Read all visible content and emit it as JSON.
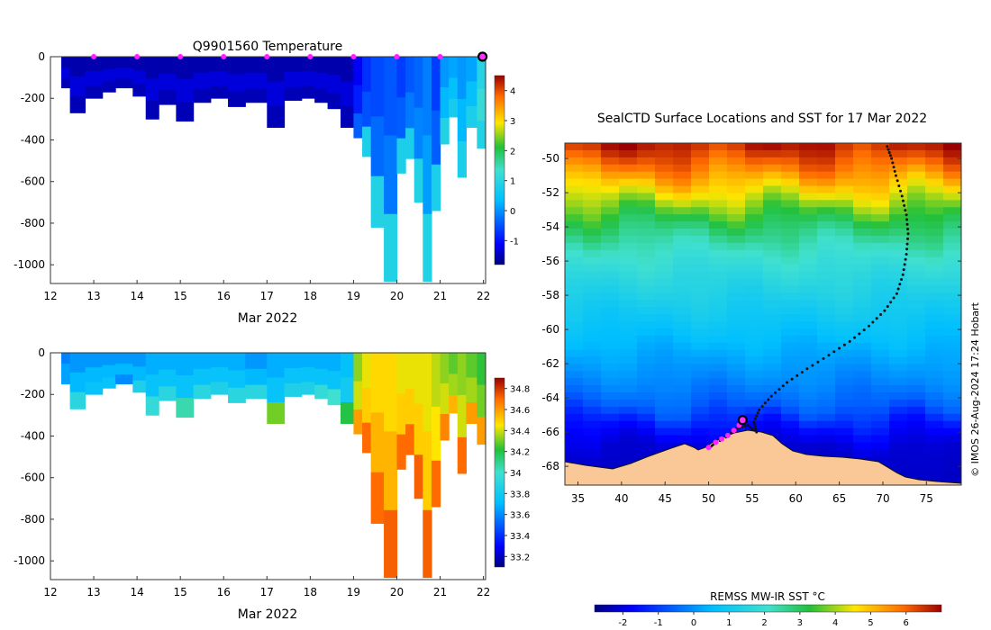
{
  "chart_data": [
    {
      "type": "heatmap",
      "id": "temperature",
      "title": "Q9901560  Temperature",
      "xlabel": "Mar 2022",
      "ylabel": "",
      "x_ticks": [
        12,
        13,
        14,
        15,
        16,
        17,
        18,
        19,
        20,
        21,
        22
      ],
      "xlim": [
        12,
        22.05
      ],
      "y_ticks": [
        0,
        -200,
        -400,
        -600,
        -800,
        -1000
      ],
      "ylim": [
        -1090,
        0
      ],
      "profile_markers_x": [
        13,
        14,
        15,
        16,
        17,
        18,
        19,
        20,
        21
      ],
      "current_marker_x": 22,
      "colorbar": {
        "ticks": [
          -1,
          0,
          1,
          2,
          3,
          4
        ],
        "range": [
          -1.8,
          4.5
        ]
      },
      "profiles": [
        {
          "t": 12.25,
          "depth": 150,
          "mid": -1.3,
          "deep": -1.5
        },
        {
          "t": 12.45,
          "depth": 270,
          "mid": -1.3,
          "deep": -1.5
        },
        {
          "t": 12.8,
          "depth": 200,
          "mid": -1.3,
          "deep": -1.5
        },
        {
          "t": 13.2,
          "depth": 170,
          "mid": -1.3,
          "deep": -1.5
        },
        {
          "t": 13.5,
          "depth": 150,
          "mid": -1.3,
          "deep": -1.5
        },
        {
          "t": 13.9,
          "depth": 190,
          "mid": -1.3,
          "deep": -1.5
        },
        {
          "t": 14.2,
          "depth": 300,
          "mid": -1.3,
          "deep": -1.5
        },
        {
          "t": 14.5,
          "depth": 230,
          "mid": -1.3,
          "deep": -1.5
        },
        {
          "t": 14.9,
          "depth": 310,
          "mid": -1.3,
          "deep": -1.5
        },
        {
          "t": 15.3,
          "depth": 220,
          "mid": -1.3,
          "deep": -1.5
        },
        {
          "t": 15.7,
          "depth": 200,
          "mid": -1.3,
          "deep": -1.5
        },
        {
          "t": 16.1,
          "depth": 240,
          "mid": -1.3,
          "deep": -1.5
        },
        {
          "t": 16.5,
          "depth": 220,
          "mid": -1.3,
          "deep": -1.5
        },
        {
          "t": 17.0,
          "depth": 340,
          "mid": -1.3,
          "deep": -1.5
        },
        {
          "t": 17.4,
          "depth": 210,
          "mid": -1.3,
          "deep": -1.5
        },
        {
          "t": 17.8,
          "depth": 200,
          "mid": -1.3,
          "deep": -1.5
        },
        {
          "t": 18.1,
          "depth": 220,
          "mid": -1.3,
          "deep": -1.5
        },
        {
          "t": 18.4,
          "depth": 250,
          "mid": -1.3,
          "deep": -1.5
        },
        {
          "t": 18.7,
          "depth": 340,
          "mid": -1.3,
          "deep": -1.5
        },
        {
          "t": 19.0,
          "depth": 390,
          "mid": -0.9,
          "deep": -0.4
        },
        {
          "t": 19.2,
          "depth": 480,
          "mid": -0.5,
          "deep": 0.8
        },
        {
          "t": 19.4,
          "depth": 820,
          "mid": -0.3,
          "deep": 0.9
        },
        {
          "t": 19.7,
          "depth": 1080,
          "mid": -0.2,
          "deep": 0.9
        },
        {
          "t": 20.0,
          "depth": 560,
          "mid": -0.4,
          "deep": 0.8
        },
        {
          "t": 20.2,
          "depth": 490,
          "mid": -0.2,
          "deep": 0.8
        },
        {
          "t": 20.4,
          "depth": 700,
          "mid": -0.1,
          "deep": 0.9
        },
        {
          "t": 20.6,
          "depth": 1080,
          "mid": 0.1,
          "deep": 0.9
        },
        {
          "t": 20.8,
          "depth": 740,
          "mid": -0.4,
          "deep": 0.8
        },
        {
          "t": 21.0,
          "depth": 420,
          "mid": 0.3,
          "deep": 0.9
        },
        {
          "t": 21.2,
          "depth": 290,
          "mid": 0.4,
          "deep": 0.7
        },
        {
          "t": 21.4,
          "depth": 580,
          "mid": 0.3,
          "deep": 0.8
        },
        {
          "t": 21.6,
          "depth": 340,
          "mid": 0.4,
          "deep": 0.8
        },
        {
          "t": 21.85,
          "depth": 440,
          "mid": 1.2,
          "deep": 0.9
        }
      ]
    },
    {
      "type": "heatmap",
      "id": "salinity",
      "title": "",
      "xlabel": "Mar 2022",
      "ylabel": "",
      "x_ticks": [
        12,
        13,
        14,
        15,
        16,
        17,
        18,
        19,
        20,
        21,
        22
      ],
      "xlim": [
        12,
        22.05
      ],
      "y_ticks": [
        0,
        -200,
        -400,
        -600,
        -800,
        -1000
      ],
      "ylim": [
        -1090,
        0
      ],
      "colorbar": {
        "ticks": [
          33.2,
          33.4,
          33.6,
          33.8,
          34,
          34.2,
          34.4,
          34.6,
          34.8
        ],
        "range": [
          33.1,
          34.9
        ]
      },
      "profiles": [
        {
          "t": 12.25,
          "depth": 150,
          "mid": 33.65,
          "deep": 33.65
        },
        {
          "t": 12.45,
          "depth": 270,
          "mid": 33.7,
          "deep": 33.9
        },
        {
          "t": 12.8,
          "depth": 200,
          "mid": 33.7,
          "deep": 33.75
        },
        {
          "t": 13.2,
          "depth": 170,
          "mid": 33.7,
          "deep": 33.75
        },
        {
          "t": 13.5,
          "depth": 150,
          "mid": 33.7,
          "deep": 33.6
        },
        {
          "t": 13.9,
          "depth": 190,
          "mid": 33.7,
          "deep": 33.85
        },
        {
          "t": 14.2,
          "depth": 300,
          "mid": 33.75,
          "deep": 33.95
        },
        {
          "t": 14.5,
          "depth": 230,
          "mid": 33.75,
          "deep": 33.9
        },
        {
          "t": 14.9,
          "depth": 310,
          "mid": 33.75,
          "deep": 34.05
        },
        {
          "t": 15.3,
          "depth": 220,
          "mid": 33.75,
          "deep": 33.9
        },
        {
          "t": 15.7,
          "depth": 200,
          "mid": 33.75,
          "deep": 33.85
        },
        {
          "t": 16.1,
          "depth": 240,
          "mid": 33.75,
          "deep": 33.9
        },
        {
          "t": 16.5,
          "depth": 220,
          "mid": 33.7,
          "deep": 33.9
        },
        {
          "t": 17.0,
          "depth": 340,
          "mid": 33.75,
          "deep": 34.3
        },
        {
          "t": 17.4,
          "depth": 210,
          "mid": 33.75,
          "deep": 33.85
        },
        {
          "t": 17.8,
          "depth": 200,
          "mid": 33.75,
          "deep": 33.85
        },
        {
          "t": 18.1,
          "depth": 220,
          "mid": 33.75,
          "deep": 33.95
        },
        {
          "t": 18.4,
          "depth": 250,
          "mid": 33.75,
          "deep": 34.0
        },
        {
          "t": 18.7,
          "depth": 340,
          "mid": 33.8,
          "deep": 34.2
        },
        {
          "t": 19.0,
          "depth": 390,
          "mid": 34.4,
          "deep": 34.6
        },
        {
          "t": 19.2,
          "depth": 480,
          "mid": 34.5,
          "deep": 34.7
        },
        {
          "t": 19.4,
          "depth": 820,
          "mid": 34.55,
          "deep": 34.7
        },
        {
          "t": 19.7,
          "depth": 1080,
          "mid": 34.55,
          "deep": 34.72
        },
        {
          "t": 20.0,
          "depth": 560,
          "mid": 34.5,
          "deep": 34.7
        },
        {
          "t": 20.2,
          "depth": 490,
          "mid": 34.5,
          "deep": 34.7
        },
        {
          "t": 20.4,
          "depth": 700,
          "mid": 34.5,
          "deep": 34.72
        },
        {
          "t": 20.6,
          "depth": 1080,
          "mid": 34.5,
          "deep": 34.72
        },
        {
          "t": 20.8,
          "depth": 740,
          "mid": 34.45,
          "deep": 34.7
        },
        {
          "t": 21.0,
          "depth": 420,
          "mid": 34.4,
          "deep": 34.65
        },
        {
          "t": 21.2,
          "depth": 290,
          "mid": 34.35,
          "deep": 34.55
        },
        {
          "t": 21.4,
          "depth": 580,
          "mid": 34.4,
          "deep": 34.7
        },
        {
          "t": 21.6,
          "depth": 340,
          "mid": 34.35,
          "deep": 34.6
        },
        {
          "t": 21.85,
          "depth": 440,
          "mid": 34.3,
          "deep": 34.6
        }
      ]
    },
    {
      "type": "map",
      "id": "sst_map",
      "title": "SealCTD Surface Locations and SST for 17 Mar 2022",
      "x_ticks": [
        35,
        40,
        45,
        50,
        55,
        60,
        65,
        70,
        75
      ],
      "y_ticks": [
        -50,
        -52,
        -54,
        -56,
        -58,
        -60,
        -62,
        -64,
        -66,
        -68
      ],
      "lon_range": [
        33.5,
        79
      ],
      "lat_range": [
        -69.1,
        -49.1
      ],
      "colorbar_label": "REMSS MW-IR SST °C",
      "colorbar_ticks": [
        -2,
        -1,
        0,
        1,
        2,
        3,
        4,
        5,
        6
      ],
      "colorbar_range": [
        -2.8,
        7.0
      ],
      "credit": "© IMOS 26-Aug-2024 17:24 Hobart",
      "track": [
        [
          70.5,
          -49.3
        ],
        [
          71.0,
          -50.0
        ],
        [
          71.5,
          -51.0
        ],
        [
          72.2,
          -52.2
        ],
        [
          72.7,
          -53.3
        ],
        [
          72.9,
          -54.4
        ],
        [
          72.7,
          -55.6
        ],
        [
          72.3,
          -56.8
        ],
        [
          71.6,
          -57.9
        ],
        [
          70.2,
          -58.9
        ],
        [
          68.4,
          -59.8
        ],
        [
          66.2,
          -60.7
        ],
        [
          63.8,
          -61.5
        ],
        [
          61.3,
          -62.3
        ],
        [
          59.0,
          -63.1
        ],
        [
          57.2,
          -63.9
        ],
        [
          55.8,
          -64.7
        ],
        [
          55.2,
          -65.4
        ],
        [
          55.5,
          -66.0
        ],
        [
          54.5,
          -65.6
        ],
        [
          53.2,
          -65.8
        ],
        [
          52.0,
          -66.3
        ],
        [
          50.6,
          -66.7
        ],
        [
          49.9,
          -67.0
        ]
      ],
      "recent_points": [
        [
          50.0,
          -66.9
        ],
        [
          50.8,
          -66.6
        ],
        [
          51.5,
          -66.4
        ],
        [
          52.2,
          -66.2
        ],
        [
          52.9,
          -65.9
        ],
        [
          53.5,
          -65.6
        ]
      ],
      "current_location": [
        53.9,
        -65.3
      ]
    }
  ]
}
